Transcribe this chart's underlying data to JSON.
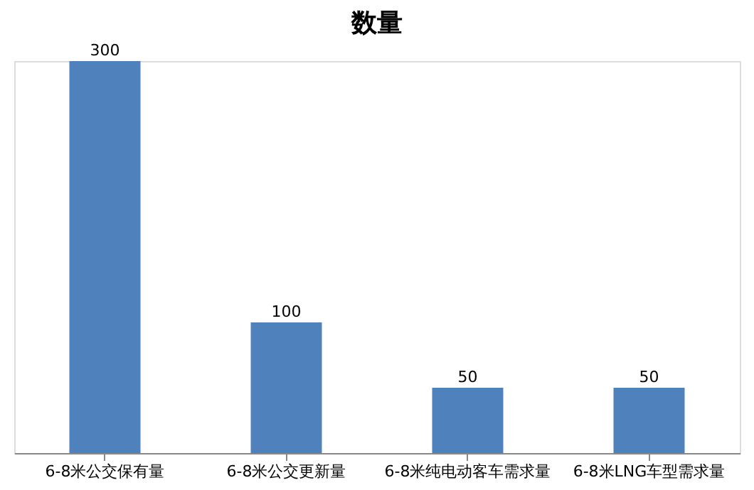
{
  "chart_data": {
    "type": "bar",
    "title": "数量",
    "categories": [
      "6-8米公交保有量",
      "6-8米公交更新量",
      "6-8米纯电动客车需求量",
      "6-8米LNG车型需求量"
    ],
    "values": [
      300,
      100,
      50,
      50
    ],
    "color": "#4f81bd",
    "data_labels": true
  }
}
